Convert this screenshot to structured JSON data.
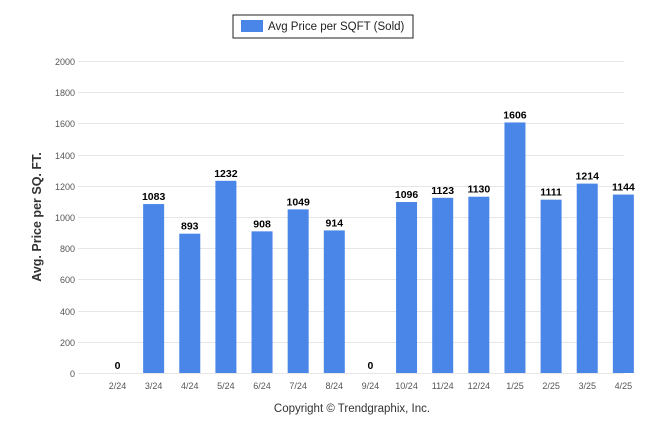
{
  "colors": {
    "bar": "#4a86e8",
    "grid": "#e6e6e6",
    "axis_text": "#555555",
    "label_text": "#000000",
    "legend_border": "#222222"
  },
  "footer": {
    "copyright": "Copyright © Trendgraphix, Inc."
  },
  "chart_data": {
    "type": "bar",
    "title": "",
    "legend": {
      "position": "top-center",
      "entries": [
        "Avg Price per SQFT (Sold)"
      ]
    },
    "xlabel": "",
    "ylabel": "Avg. Price per SQ. FT.",
    "ylim": [
      0,
      2000
    ],
    "yticks": [
      0,
      200,
      400,
      600,
      800,
      1000,
      1200,
      1400,
      1600,
      1800,
      2000
    ],
    "grid": true,
    "categories": [
      "2/24",
      "3/24",
      "4/24",
      "5/24",
      "6/24",
      "7/24",
      "8/24",
      "9/24",
      "10/24",
      "11/24",
      "12/24",
      "1/25",
      "2/25",
      "3/25",
      "4/25"
    ],
    "series": [
      {
        "name": "Avg Price per SQFT (Sold)",
        "values": [
          0,
          1083,
          893,
          1232,
          908,
          1049,
          914,
          0,
          1096,
          1123,
          1130,
          1606,
          1111,
          1214,
          1144
        ]
      }
    ]
  }
}
